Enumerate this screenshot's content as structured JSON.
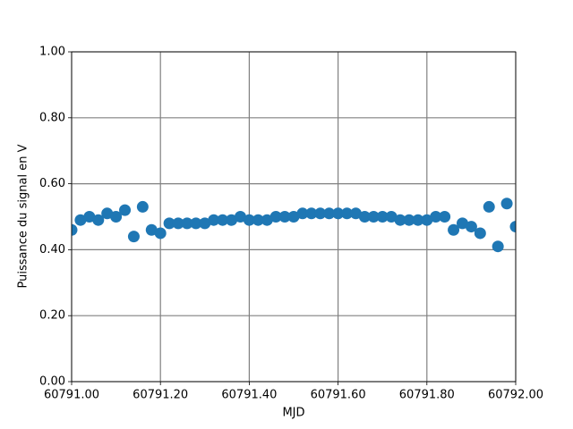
{
  "chart_data": {
    "type": "scatter",
    "x_label": "MJD",
    "y_label": "Puissance du signal en V",
    "color": "#1f77b4",
    "grid": true,
    "xlim": [
      60791,
      60792
    ],
    "xticks": [
      {
        "value": 60791,
        "label": "60791.00"
      },
      {
        "value": 60791.2,
        "label": "60791.20"
      },
      {
        "value": 60791.4,
        "label": "60791.40"
      },
      {
        "value": 60791.6,
        "label": "60791.60"
      },
      {
        "value": 60791.8,
        "label": "60791.80"
      },
      {
        "value": 60792,
        "label": "60792.00"
      }
    ],
    "ylim": [
      0,
      1
    ],
    "yticks": [
      {
        "value": 0,
        "label": "0.00"
      },
      {
        "value": 0.2,
        "label": "0.20"
      },
      {
        "value": 0.4,
        "label": "0.40"
      },
      {
        "value": 0.6,
        "label": "0.60"
      },
      {
        "value": 0.8,
        "label": "0.80"
      },
      {
        "value": 1,
        "label": "1.00"
      }
    ],
    "x": [
      60791,
      60791.02,
      60791.04,
      60791.06,
      60791.08,
      60791.1,
      60791.12,
      60791.14,
      60791.16,
      60791.18,
      60791.2,
      60791.22,
      60791.24,
      60791.26,
      60791.28,
      60791.3,
      60791.32,
      60791.34,
      60791.36,
      60791.38,
      60791.4,
      60791.42,
      60791.44,
      60791.46,
      60791.48,
      60791.5,
      60791.52,
      60791.54,
      60791.56,
      60791.58,
      60791.6,
      60791.62,
      60791.64,
      60791.66,
      60791.68,
      60791.7,
      60791.72,
      60791.74,
      60791.76,
      60791.78,
      60791.8,
      60791.82,
      60791.84,
      60791.86,
      60791.88,
      60791.9,
      60791.92,
      60791.94,
      60791.96,
      60791.98,
      60792
    ],
    "values": [
      0.46,
      0.49,
      0.5,
      0.49,
      0.51,
      0.5,
      0.52,
      0.44,
      0.53,
      0.46,
      0.45,
      0.48,
      0.48,
      0.48,
      0.48,
      0.48,
      0.49,
      0.49,
      0.49,
      0.5,
      0.49,
      0.49,
      0.49,
      0.5,
      0.5,
      0.5,
      0.51,
      0.51,
      0.51,
      0.51,
      0.51,
      0.51,
      0.51,
      0.5,
      0.5,
      0.5,
      0.5,
      0.49,
      0.49,
      0.49,
      0.49,
      0.5,
      0.5,
      0.46,
      0.48,
      0.47,
      0.45,
      0.53,
      0.41,
      0.54,
      0.47
    ]
  }
}
